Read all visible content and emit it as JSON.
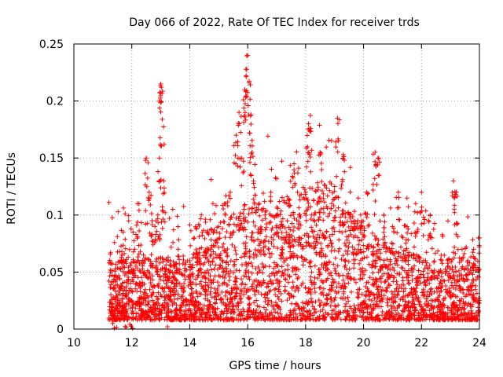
{
  "chart_data": {
    "type": "scatter",
    "title": "Day 066 of 2022, Rate Of TEC Index for receiver trds",
    "xlabel": "GPS time / hours",
    "ylabel": "ROTI / TECUs",
    "xlim": [
      10,
      24
    ],
    "ylim": [
      0,
      0.25
    ],
    "x_ticks": [
      "10",
      "12",
      "14",
      "16",
      "18",
      "20",
      "22",
      "24"
    ],
    "y_ticks": [
      "0",
      "0.05",
      "0.1",
      "0.15",
      "0.2",
      "0.25"
    ],
    "grid": true,
    "marker": "+",
    "color": "#ff0000",
    "point_count_description": "dense cloud of thousands of points",
    "series": [
      {
        "points": [
          [
            11.3,
            0.02
          ],
          [
            11.4,
            0.015
          ],
          [
            11.5,
            0.045
          ],
          [
            11.6,
            0.06
          ],
          [
            11.7,
            0.085
          ],
          [
            11.8,
            0.03
          ],
          [
            11.9,
            0.05
          ],
          [
            12.0,
            0.025
          ],
          [
            12.1,
            0.07
          ],
          [
            12.2,
            0.11
          ],
          [
            12.3,
            0.04
          ],
          [
            12.4,
            0.065
          ],
          [
            12.5,
            0.15
          ],
          [
            12.6,
            0.12
          ],
          [
            12.7,
            0.095
          ],
          [
            12.8,
            0.09
          ],
          [
            12.9,
            0.1
          ],
          [
            12.95,
            0.15
          ],
          [
            13.0,
            0.215
          ],
          [
            13.02,
            0.212
          ],
          [
            13.05,
            0.184
          ],
          [
            13.1,
            0.13
          ],
          [
            13.2,
            0.03
          ],
          [
            13.4,
            0.05
          ],
          [
            13.6,
            0.07
          ],
          [
            13.8,
            0.04
          ],
          [
            14.0,
            0.06
          ],
          [
            14.2,
            0.09
          ],
          [
            14.4,
            0.1
          ],
          [
            14.6,
            0.085
          ],
          [
            14.8,
            0.11
          ],
          [
            15.0,
            0.09
          ],
          [
            15.2,
            0.11
          ],
          [
            15.4,
            0.12
          ],
          [
            15.6,
            0.17
          ],
          [
            15.7,
            0.19
          ],
          [
            15.8,
            0.15
          ],
          [
            15.9,
            0.21
          ],
          [
            15.95,
            0.209
          ],
          [
            16.0,
            0.24
          ],
          [
            16.05,
            0.216
          ],
          [
            16.1,
            0.187
          ],
          [
            16.15,
            0.155
          ],
          [
            16.2,
            0.13
          ],
          [
            16.4,
            0.11
          ],
          [
            16.6,
            0.1
          ],
          [
            16.8,
            0.12
          ],
          [
            17.0,
            0.1
          ],
          [
            17.2,
            0.09
          ],
          [
            17.4,
            0.11
          ],
          [
            17.6,
            0.145
          ],
          [
            17.8,
            0.1
          ],
          [
            18.0,
            0.12
          ],
          [
            18.1,
            0.18
          ],
          [
            18.15,
            0.176
          ],
          [
            18.3,
            0.1
          ],
          [
            18.5,
            0.155
          ],
          [
            18.7,
            0.08
          ],
          [
            18.9,
            0.11
          ],
          [
            19.0,
            0.125
          ],
          [
            19.1,
            0.185
          ],
          [
            19.3,
            0.153
          ],
          [
            19.5,
            0.1
          ],
          [
            19.7,
            0.09
          ],
          [
            19.9,
            0.1
          ],
          [
            20.1,
            0.12
          ],
          [
            20.4,
            0.155
          ],
          [
            20.5,
            0.15
          ],
          [
            20.7,
            0.1
          ],
          [
            21.0,
            0.09
          ],
          [
            21.2,
            0.12
          ],
          [
            21.5,
            0.09
          ],
          [
            21.8,
            0.11
          ],
          [
            22.0,
            0.12
          ],
          [
            22.3,
            0.1
          ],
          [
            22.6,
            0.05
          ],
          [
            22.9,
            0.06
          ],
          [
            23.1,
            0.13
          ],
          [
            23.2,
            0.12
          ],
          [
            23.4,
            0.07
          ],
          [
            23.6,
            0.06
          ],
          [
            23.8,
            0.07
          ],
          [
            24.0,
            0.08
          ]
        ]
      }
    ]
  }
}
